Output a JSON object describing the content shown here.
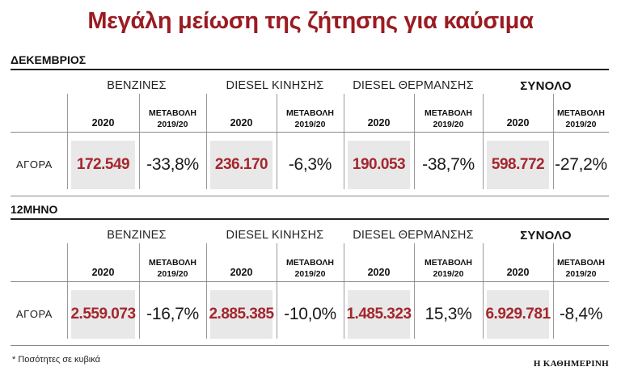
{
  "title": "Μεγάλη μείωση της ζήτησης για καύσιμα",
  "columns": {
    "groups": [
      "ΒΕΝΖΙΝΕΣ",
      "DIESEL ΚΙΝΗΣΗΣ",
      "DIESEL ΘΕΡΜΑΝΣΗΣ",
      "ΣΥΝΟΛΟ"
    ],
    "year_label": "2020",
    "change_label_line1": "ΜΕΤΑΒΟΛΗ",
    "change_label_line2": "2019/20"
  },
  "sections": [
    {
      "label": "ΔΕΚΕΜΒΡΙΟΣ",
      "row_label": "ΑΓΟΡΑ",
      "values": [
        "172.549",
        "236.170",
        "190.053",
        "598.772"
      ],
      "changes": [
        "-33,8%",
        "-6,3%",
        "-38,7%",
        "-27,2%"
      ]
    },
    {
      "label": "12ΜΗΝΟ",
      "row_label": "ΑΓΟΡΑ",
      "values": [
        "2.559.073",
        "2.885.385",
        "1.485.323",
        "6.929.781"
      ],
      "changes": [
        "-16,7%",
        "-10,0%",
        "15,3%",
        "-8,4%"
      ]
    }
  ],
  "footnote": "* Ποσότητες σε κυβικά",
  "source": "Η ΚΑΘΗΜΕΡΙΝΗ",
  "colors": {
    "title": "#9b1b22",
    "value": "#a5262d",
    "value_bg": "#e8e8e8"
  }
}
